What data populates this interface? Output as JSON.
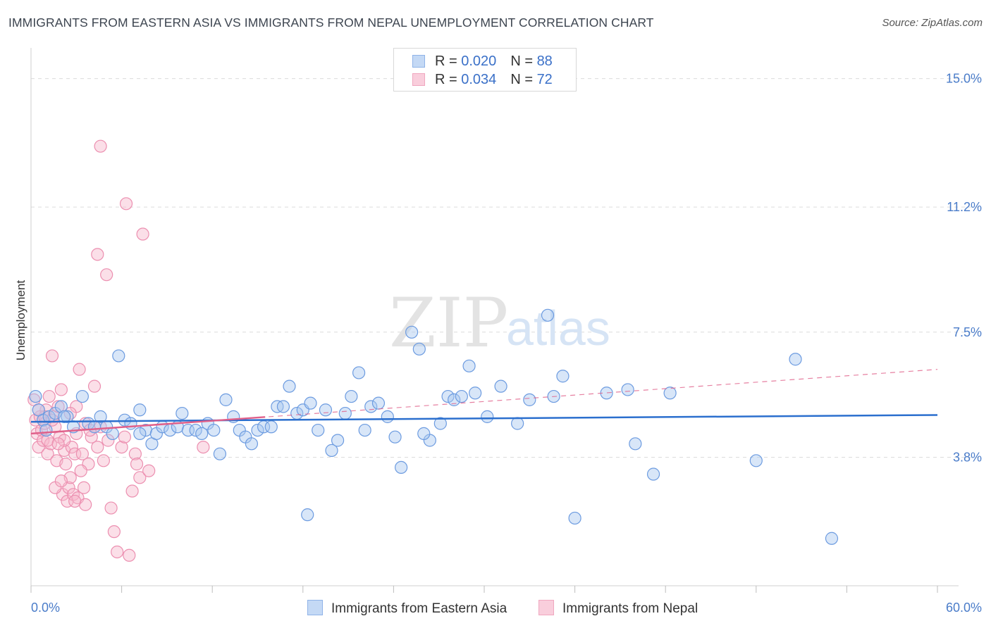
{
  "title": "IMMIGRANTS FROM EASTERN ASIA VS IMMIGRANTS FROM NEPAL UNEMPLOYMENT CORRELATION CHART",
  "source": "Source: ZipAtlas.com",
  "watermark": {
    "zip": "ZIP",
    "atlas": "atlas"
  },
  "colors": {
    "blue_fill": "#a9c8f0",
    "blue_stroke": "#6c9be0",
    "blue_line": "#2b6fce",
    "pink_fill": "#f6b8cc",
    "pink_stroke": "#ec8fb0",
    "pink_line": "#e0608a",
    "grid": "#dcdcdc",
    "tick_label": "#4a7cc9"
  },
  "legend": {
    "rows": [
      {
        "r_label": "R = ",
        "r_value": "0.020",
        "n_label": "N = ",
        "n_value": "88"
      },
      {
        "r_label": "R = ",
        "r_value": "0.034",
        "n_label": "N = ",
        "n_value": "72"
      }
    ]
  },
  "chart_data": {
    "type": "scatter",
    "title": "IMMIGRANTS FROM EASTERN ASIA VS IMMIGRANTS FROM NEPAL UNEMPLOYMENT CORRELATION CHART",
    "xlabel": "",
    "ylabel": "Unemployment",
    "xlim": [
      0,
      60
    ],
    "ylim": [
      0,
      15.7
    ],
    "x_tick_labels": [
      {
        "value": 0,
        "label": "0.0%"
      },
      {
        "value": 60,
        "label": "60.0%"
      }
    ],
    "y_ticks": [
      {
        "value": 3.8,
        "label": "3.8%"
      },
      {
        "value": 7.5,
        "label": "7.5%"
      },
      {
        "value": 11.2,
        "label": "11.2%"
      },
      {
        "value": 15.0,
        "label": "15.0%"
      }
    ],
    "grid": true,
    "legend_position": "top-center",
    "series": [
      {
        "name": "Immigrants from Eastern Asia",
        "color": "#a9c8f0",
        "trend": {
          "x0": 0,
          "y0": 4.85,
          "x1": 60,
          "y1": 5.05,
          "style": "solid"
        },
        "points": [
          [
            0.5,
            5.2
          ],
          [
            0.8,
            4.9
          ],
          [
            1.2,
            5.0
          ],
          [
            1.6,
            5.1
          ],
          [
            2.0,
            5.3
          ],
          [
            2.4,
            5.0
          ],
          [
            2.8,
            4.7
          ],
          [
            3.4,
            5.6
          ],
          [
            3.8,
            4.8
          ],
          [
            4.2,
            4.7
          ],
          [
            4.6,
            5.0
          ],
          [
            5.0,
            4.7
          ],
          [
            5.4,
            4.5
          ],
          [
            5.8,
            6.8
          ],
          [
            6.2,
            4.9
          ],
          [
            6.6,
            4.8
          ],
          [
            7.2,
            5.2
          ],
          [
            7.6,
            4.6
          ],
          [
            8.0,
            4.2
          ],
          [
            8.3,
            4.5
          ],
          [
            8.7,
            4.7
          ],
          [
            9.2,
            4.6
          ],
          [
            9.7,
            4.7
          ],
          [
            10.0,
            5.1
          ],
          [
            10.4,
            4.6
          ],
          [
            10.9,
            4.6
          ],
          [
            11.3,
            4.5
          ],
          [
            11.7,
            4.8
          ],
          [
            12.1,
            4.6
          ],
          [
            12.5,
            3.9
          ],
          [
            12.9,
            5.5
          ],
          [
            13.4,
            5.0
          ],
          [
            13.8,
            4.6
          ],
          [
            14.2,
            4.4
          ],
          [
            14.6,
            4.2
          ],
          [
            15.0,
            4.6
          ],
          [
            15.4,
            4.7
          ],
          [
            15.9,
            4.7
          ],
          [
            16.3,
            5.3
          ],
          [
            16.7,
            5.3
          ],
          [
            17.1,
            5.9
          ],
          [
            17.6,
            5.1
          ],
          [
            18.0,
            5.2
          ],
          [
            18.5,
            5.4
          ],
          [
            19.0,
            4.6
          ],
          [
            19.5,
            5.2
          ],
          [
            19.9,
            4.0
          ],
          [
            20.3,
            4.3
          ],
          [
            20.8,
            5.1
          ],
          [
            21.2,
            5.6
          ],
          [
            21.7,
            6.3
          ],
          [
            22.1,
            4.6
          ],
          [
            22.5,
            5.3
          ],
          [
            23.0,
            5.4
          ],
          [
            23.6,
            5.0
          ],
          [
            24.1,
            4.4
          ],
          [
            24.5,
            3.5
          ],
          [
            25.2,
            7.5
          ],
          [
            25.7,
            7.0
          ],
          [
            26.4,
            4.3
          ],
          [
            27.1,
            4.8
          ],
          [
            27.6,
            5.6
          ],
          [
            28.0,
            5.5
          ],
          [
            28.5,
            5.6
          ],
          [
            29.0,
            6.5
          ],
          [
            29.4,
            5.7
          ],
          [
            30.2,
            5.0
          ],
          [
            31.1,
            5.9
          ],
          [
            32.2,
            4.8
          ],
          [
            33.0,
            5.5
          ],
          [
            34.2,
            8.0
          ],
          [
            34.6,
            5.6
          ],
          [
            35.2,
            6.2
          ],
          [
            36.0,
            2.0
          ],
          [
            38.1,
            5.7
          ],
          [
            39.5,
            5.8
          ],
          [
            40.0,
            4.2
          ],
          [
            41.2,
            3.3
          ],
          [
            42.3,
            5.7
          ],
          [
            48.0,
            3.7
          ],
          [
            50.6,
            6.7
          ],
          [
            53.0,
            1.4
          ],
          [
            0.3,
            5.6
          ],
          [
            1.0,
            4.6
          ],
          [
            2.2,
            5.0
          ],
          [
            7.2,
            4.5
          ],
          [
            18.3,
            2.1
          ],
          [
            26.0,
            4.5
          ]
        ]
      },
      {
        "name": "Immigrants from Nepal",
        "color": "#f6b8cc",
        "trend": {
          "x0": 0,
          "y0": 4.5,
          "x1": 60,
          "y1": 6.4,
          "solid_until_x": 15.5
        },
        "points": [
          [
            0.2,
            5.5
          ],
          [
            0.3,
            4.9
          ],
          [
            0.4,
            4.5
          ],
          [
            0.5,
            4.1
          ],
          [
            0.6,
            5.0
          ],
          [
            0.7,
            4.6
          ],
          [
            0.8,
            4.3
          ],
          [
            0.9,
            4.8
          ],
          [
            1.0,
            5.2
          ],
          [
            1.1,
            3.9
          ],
          [
            1.2,
            5.6
          ],
          [
            1.3,
            4.2
          ],
          [
            1.4,
            6.8
          ],
          [
            1.5,
            5.0
          ],
          [
            1.6,
            4.7
          ],
          [
            1.7,
            3.7
          ],
          [
            1.8,
            5.3
          ],
          [
            1.9,
            4.4
          ],
          [
            2.0,
            5.8
          ],
          [
            2.1,
            2.7
          ],
          [
            2.2,
            4.0
          ],
          [
            2.3,
            3.6
          ],
          [
            2.4,
            2.5
          ],
          [
            2.5,
            2.9
          ],
          [
            2.6,
            3.2
          ],
          [
            2.7,
            4.1
          ],
          [
            2.8,
            2.7
          ],
          [
            2.9,
            3.9
          ],
          [
            3.0,
            5.3
          ],
          [
            3.1,
            2.6
          ],
          [
            3.2,
            6.4
          ],
          [
            3.4,
            3.9
          ],
          [
            3.5,
            2.9
          ],
          [
            3.6,
            2.4
          ],
          [
            3.8,
            3.6
          ],
          [
            4.0,
            4.4
          ],
          [
            4.2,
            5.9
          ],
          [
            4.4,
            4.1
          ],
          [
            4.6,
            13.0
          ],
          [
            4.8,
            3.7
          ],
          [
            5.0,
            9.2
          ],
          [
            5.3,
            2.3
          ],
          [
            5.5,
            1.6
          ],
          [
            5.7,
            1.0
          ],
          [
            6.0,
            4.1
          ],
          [
            6.3,
            11.3
          ],
          [
            6.5,
            0.9
          ],
          [
            6.7,
            2.8
          ],
          [
            6.9,
            3.9
          ],
          [
            7.2,
            3.2
          ],
          [
            7.4,
            10.4
          ],
          [
            7.8,
            3.4
          ],
          [
            4.4,
            9.8
          ],
          [
            1.1,
            4.3
          ],
          [
            0.9,
            5.0
          ],
          [
            1.6,
            2.9
          ],
          [
            2.0,
            3.1
          ],
          [
            3.0,
            4.5
          ],
          [
            3.3,
            3.4
          ],
          [
            3.6,
            4.8
          ],
          [
            4.6,
            4.7
          ],
          [
            5.1,
            4.3
          ],
          [
            6.2,
            4.4
          ],
          [
            7.0,
            3.6
          ],
          [
            11.4,
            4.1
          ],
          [
            0.5,
            5.2
          ],
          [
            1.4,
            4.9
          ],
          [
            2.2,
            4.3
          ],
          [
            2.6,
            5.1
          ],
          [
            3.9,
            4.6
          ],
          [
            2.9,
            2.5
          ],
          [
            1.8,
            4.2
          ]
        ]
      }
    ]
  },
  "bottom_legend": [
    {
      "label": "Immigrants from Eastern Asia"
    },
    {
      "label": "Immigrants from Nepal"
    }
  ]
}
